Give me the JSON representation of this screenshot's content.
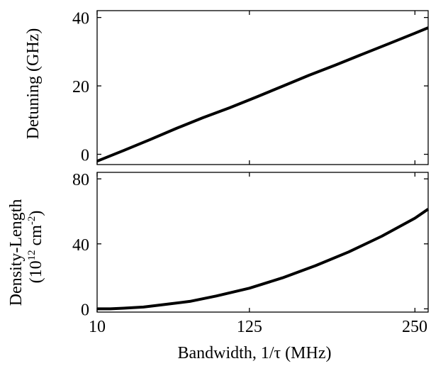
{
  "chart_data": [
    {
      "type": "line",
      "panel": "top",
      "title": "",
      "xlabel": "",
      "ylabel": "Detuning (GHz)",
      "xlim": [
        10,
        260
      ],
      "ylim": [
        -3,
        42
      ],
      "xticks": [
        10,
        125,
        250
      ],
      "xtick_labels": [
        "",
        "",
        ""
      ],
      "yticks": [
        0,
        20,
        40
      ],
      "ytick_labels": [
        "0",
        "20",
        "40"
      ],
      "grid": false,
      "series": [
        {
          "color": "#000000",
          "x": [
            10,
            30,
            50,
            70,
            90,
            110,
            130,
            150,
            170,
            190,
            210,
            230,
            250,
            260
          ],
          "y": [
            -2.0,
            1.1,
            4.3,
            7.6,
            10.7,
            13.6,
            16.7,
            19.9,
            23.1,
            26.1,
            29.2,
            32.3,
            35.4,
            37.0
          ]
        }
      ]
    },
    {
      "type": "line",
      "panel": "bottom",
      "title": "",
      "xlabel": "Bandwidth, 1/τ (MHz)",
      "ylabel_line1": "Density-Length",
      "ylabel_line2_parts": [
        "(10",
        "12",
        " cm",
        "-2",
        ")"
      ],
      "xlim": [
        10,
        260
      ],
      "ylim": [
        -2,
        84
      ],
      "xticks": [
        10,
        125,
        250
      ],
      "xtick_labels": [
        "10",
        "125",
        "250"
      ],
      "yticks": [
        0,
        40,
        80
      ],
      "ytick_labels": [
        "0",
        "40",
        "80"
      ],
      "grid": false,
      "series": [
        {
          "color": "#000000",
          "x": [
            10,
            20,
            30,
            45,
            60,
            80,
            100,
            125,
            150,
            175,
            200,
            225,
            250,
            260
          ],
          "y": [
            0.0,
            0.0,
            0.4,
            1.1,
            2.6,
            4.6,
            7.9,
            12.7,
            19.1,
            26.6,
            35.0,
            44.7,
            55.8,
            61.4
          ]
        }
      ]
    }
  ]
}
